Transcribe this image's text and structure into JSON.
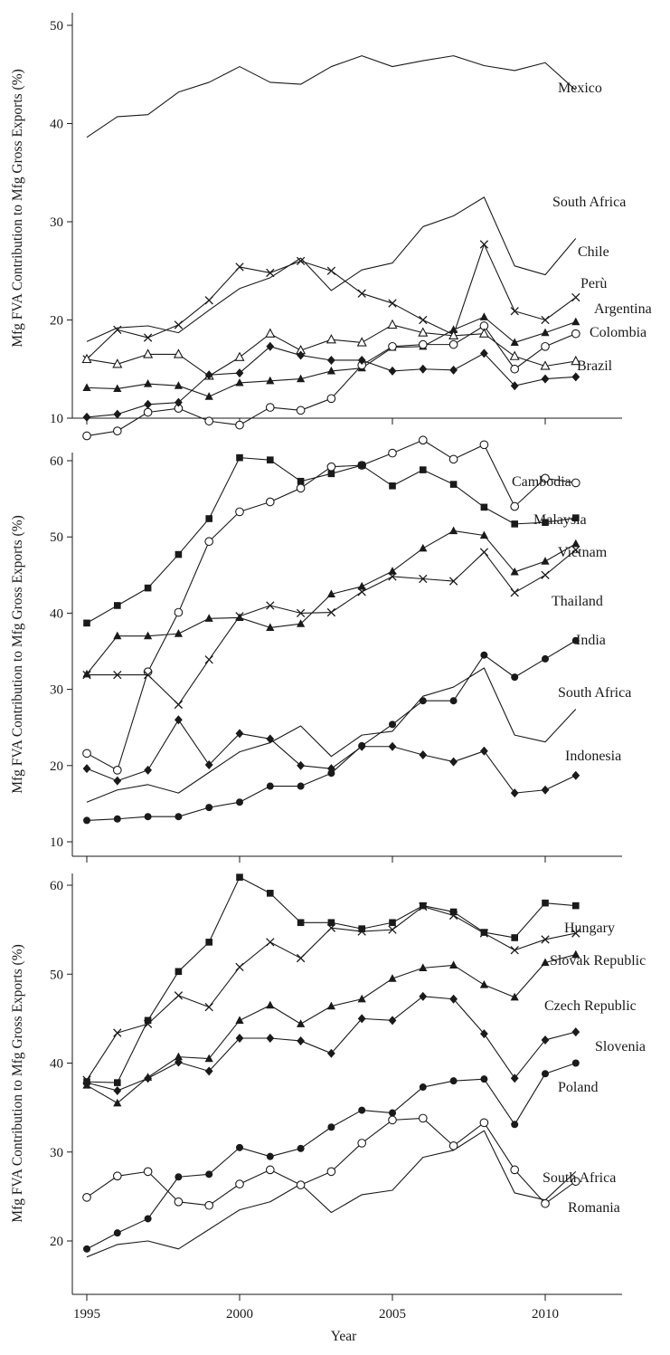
{
  "chart_data": [
    {
      "type": "line",
      "ylabel": "Mfg FVA Contribution to Mfg Gross Exports (%)",
      "ylim": [
        10,
        50
      ],
      "yticks": [
        10,
        20,
        30,
        40,
        50
      ],
      "x": [
        1995,
        1996,
        1997,
        1998,
        1999,
        2000,
        2001,
        2002,
        2003,
        2004,
        2005,
        2006,
        2007,
        2008,
        2009,
        2010,
        2011
      ],
      "series": [
        {
          "name": "Mexico",
          "marker": "none",
          "values": [
            38.6,
            40.7,
            40.9,
            43.2,
            44.2,
            45.8,
            44.2,
            44.0,
            45.8,
            46.9,
            45.8,
            46.4,
            46.9,
            45.9,
            45.4,
            46.2,
            43.4
          ]
        },
        {
          "name": "South Africa",
          "marker": "none",
          "values": [
            17.8,
            19.2,
            19.4,
            18.7,
            21.0,
            23.2,
            24.3,
            26.3,
            23.0,
            25.1,
            25.8,
            29.5,
            30.6,
            32.5,
            25.5,
            24.6,
            28.3
          ]
        },
        {
          "name": "Chile",
          "marker": "x",
          "values": [
            16.0,
            19.0,
            18.2,
            19.5,
            22.0,
            25.4,
            24.8,
            26.0,
            25.0,
            22.7,
            21.7,
            20.0,
            18.5,
            27.7,
            20.9,
            20.0,
            22.3
          ]
        },
        {
          "name": "Perù",
          "marker": "filled-triangle",
          "values": [
            13.1,
            13.0,
            13.5,
            13.3,
            12.2,
            13.6,
            13.8,
            14.0,
            14.8,
            15.1,
            17.2,
            17.3,
            19.0,
            20.3,
            17.7,
            18.7,
            19.8
          ]
        },
        {
          "name": "Argentina",
          "marker": "open-circle",
          "values": [
            8.2,
            8.7,
            10.6,
            11.0,
            9.7,
            9.3,
            11.1,
            10.8,
            12.0,
            15.4,
            17.3,
            17.5,
            17.5,
            19.4,
            15.0,
            17.3,
            18.6
          ]
        },
        {
          "name": "Colombia",
          "marker": "open-triangle",
          "values": [
            16.0,
            15.5,
            16.5,
            16.5,
            14.3,
            16.2,
            18.6,
            16.9,
            18.0,
            17.7,
            19.5,
            18.7,
            18.4,
            18.6,
            16.3,
            15.3,
            15.8
          ]
        },
        {
          "name": "Brazil",
          "marker": "filled-diamond",
          "values": [
            10.1,
            10.4,
            11.4,
            11.6,
            14.4,
            14.6,
            17.3,
            16.4,
            15.9,
            15.9,
            14.8,
            15.0,
            14.9,
            16.6,
            13.3,
            14.0,
            14.2
          ]
        }
      ],
      "labels": [
        "Mexico",
        "South Africa",
        "Chile",
        "Perù",
        "Argentina",
        "Colombia",
        "Brazil"
      ]
    },
    {
      "type": "line",
      "ylabel": "Mfg FVA Contribution to Mfg Gross Exports (%)",
      "ylim": [
        10,
        62
      ],
      "yticks": [
        10,
        20,
        30,
        40,
        50,
        60
      ],
      "x": [
        1995,
        1996,
        1997,
        1998,
        1999,
        2000,
        2001,
        2002,
        2003,
        2004,
        2005,
        2006,
        2007,
        2008,
        2009,
        2010,
        2011
      ],
      "series": [
        {
          "name": "Cambodia",
          "marker": "open-circle",
          "values": [
            21.6,
            19.4,
            32.3,
            40.1,
            49.4,
            53.3,
            54.6,
            56.4,
            59.2,
            59.4,
            61.0,
            62.7,
            60.2,
            62.1,
            54.0,
            57.7,
            57.1
          ]
        },
        {
          "name": "Malaysia",
          "marker": "filled-square",
          "values": [
            38.7,
            41.0,
            43.3,
            47.7,
            52.4,
            60.4,
            60.1,
            57.3,
            58.3,
            59.4,
            56.7,
            58.8,
            56.9,
            53.9,
            51.7,
            51.9,
            52.5
          ]
        },
        {
          "name": "Vietnam",
          "marker": "filled-triangle",
          "values": [
            32.0,
            37.0,
            37.0,
            37.3,
            39.3,
            39.4,
            38.1,
            38.6,
            42.5,
            43.5,
            45.5,
            48.5,
            50.8,
            50.2,
            45.4,
            46.8,
            49.1
          ]
        },
        {
          "name": "Thailand",
          "marker": "x",
          "values": [
            31.9,
            31.9,
            31.9,
            28.0,
            33.9,
            39.6,
            41.0,
            40.0,
            40.1,
            42.8,
            44.8,
            44.5,
            44.2,
            48.0,
            42.7,
            45.0,
            48.3
          ]
        },
        {
          "name": "India",
          "marker": "filled-circle",
          "values": [
            12.8,
            13.0,
            13.3,
            13.3,
            14.5,
            15.2,
            17.3,
            17.3,
            19.0,
            22.6,
            25.4,
            28.5,
            28.5,
            34.5,
            31.6,
            34.0,
            36.4
          ]
        },
        {
          "name": "South Africa",
          "marker": "none",
          "values": [
            15.2,
            16.8,
            17.5,
            16.4,
            19.1,
            21.8,
            23.0,
            25.2,
            21.2,
            24.0,
            24.5,
            29.1,
            30.3,
            32.8,
            24.0,
            23.1,
            27.4
          ]
        },
        {
          "name": "Indonesia",
          "marker": "filled-diamond",
          "values": [
            19.6,
            18.0,
            19.4,
            26.0,
            20.1,
            24.2,
            23.5,
            20.0,
            19.6,
            22.5,
            22.5,
            21.4,
            20.5,
            21.9,
            16.4,
            16.8,
            18.7
          ]
        }
      ],
      "labels": [
        "Cambodia",
        "Malaysia",
        "Vietnam",
        "Thailand",
        "India",
        "South Africa",
        "Indonesia"
      ]
    },
    {
      "type": "line",
      "ylabel": "Mfg FVA Contribution to Mfg Gross Exports (%)",
      "xlabel": "Year",
      "ylim": [
        18,
        62
      ],
      "yticks": [
        20,
        30,
        40,
        50,
        60
      ],
      "xticks": [
        1995,
        2000,
        2005,
        2010
      ],
      "x": [
        1995,
        1996,
        1997,
        1998,
        1999,
        2000,
        2001,
        2002,
        2003,
        2004,
        2005,
        2006,
        2007,
        2008,
        2009,
        2010,
        2011
      ],
      "series": [
        {
          "name": "Hungary",
          "marker": "filled-square",
          "values": [
            37.9,
            37.8,
            44.8,
            50.3,
            53.6,
            60.9,
            59.1,
            55.8,
            55.8,
            55.1,
            55.8,
            57.7,
            57.0,
            54.7,
            54.1,
            58.0,
            57.7
          ]
        },
        {
          "name": "Slovak Republic",
          "marker": "x",
          "values": [
            38.1,
            43.4,
            44.4,
            47.6,
            46.3,
            50.8,
            53.6,
            51.8,
            55.2,
            54.8,
            55.0,
            57.6,
            56.6,
            54.6,
            52.7,
            53.9,
            54.6
          ]
        },
        {
          "name": "Czech Republic",
          "marker": "filled-triangle",
          "values": [
            37.5,
            35.5,
            38.4,
            40.7,
            40.5,
            44.8,
            46.5,
            44.4,
            46.4,
            47.2,
            49.5,
            50.7,
            51.0,
            48.8,
            47.4,
            51.3,
            52.2
          ]
        },
        {
          "name": "Slovenia",
          "marker": "filled-diamond",
          "values": [
            37.8,
            36.9,
            38.3,
            40.1,
            39.1,
            42.8,
            42.8,
            42.5,
            41.1,
            45.0,
            44.8,
            47.5,
            47.2,
            43.3,
            38.3,
            42.6,
            43.5
          ]
        },
        {
          "name": "Poland",
          "marker": "filled-circle",
          "values": [
            19.1,
            20.9,
            22.5,
            27.2,
            27.5,
            30.5,
            29.5,
            30.4,
            32.8,
            34.7,
            34.4,
            37.3,
            38.0,
            38.2,
            33.1,
            38.8,
            40.0
          ]
        },
        {
          "name": "South Africa",
          "marker": "none",
          "values": [
            18.2,
            19.6,
            20.0,
            19.1,
            21.3,
            23.5,
            24.4,
            26.4,
            23.2,
            25.2,
            25.7,
            29.4,
            30.2,
            32.4,
            25.4,
            24.6,
            27.8
          ]
        },
        {
          "name": "Romania",
          "marker": "open-circle",
          "values": [
            24.9,
            27.3,
            27.8,
            24.4,
            24.0,
            26.4,
            28.0,
            26.3,
            27.8,
            31.0,
            33.6,
            33.8,
            30.7,
            33.3,
            28.0,
            24.2,
            26.7
          ]
        }
      ],
      "labels": [
        "Hungary",
        "Slovak Republic",
        "Czech Republic",
        "Slovenia",
        "Poland",
        "South Africa",
        "Romania"
      ]
    }
  ]
}
